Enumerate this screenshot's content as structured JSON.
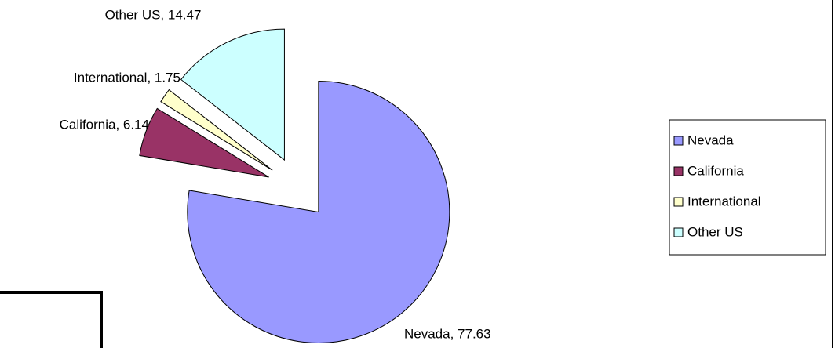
{
  "chart_data": {
    "type": "pie",
    "categories": [
      "Nevada",
      "California",
      "International",
      "Other US"
    ],
    "values": [
      77.63,
      6.14,
      1.75,
      14.47
    ],
    "value_labels": [
      "Nevada, 77.63",
      "California, 6.14",
      "International, 1.75",
      "Other US, 14.47"
    ],
    "colors": [
      "#9999ff",
      "#993366",
      "#ffffcc",
      "#ccffff"
    ],
    "legend": "right"
  }
}
